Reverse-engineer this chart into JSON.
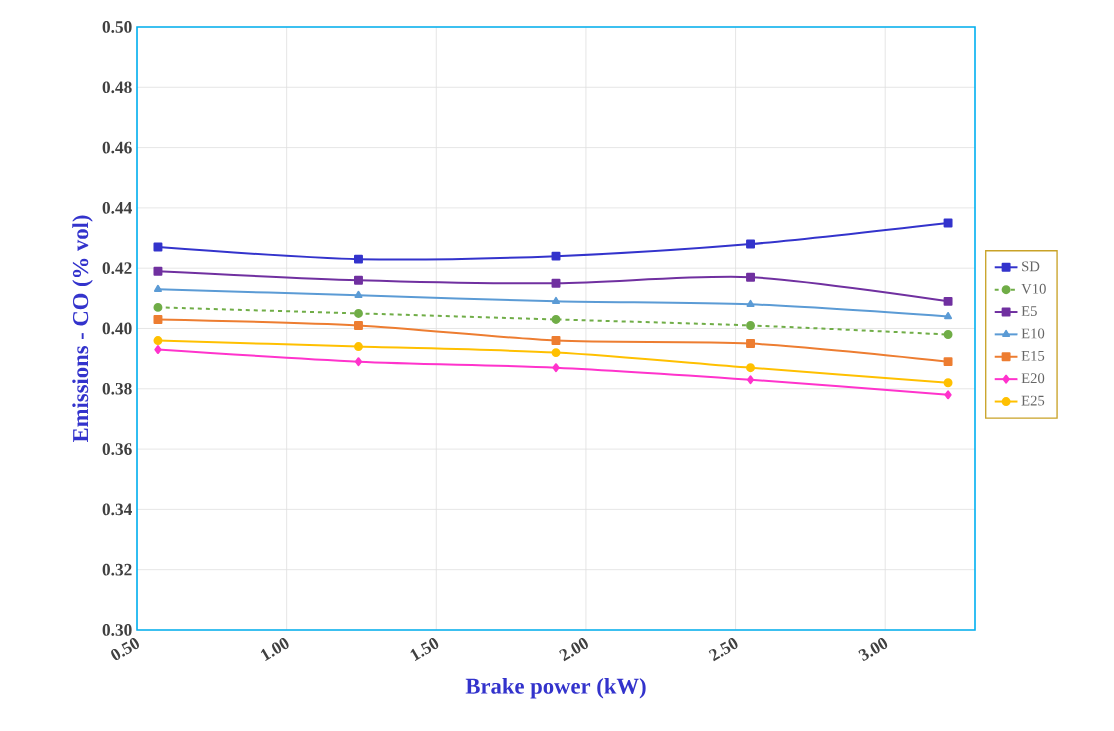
{
  "chart_data": {
    "type": "line",
    "xlabel": "Brake power (kW)",
    "ylabel": "Emissions - CO (% vol)",
    "x": [
      0.57,
      1.24,
      1.9,
      2.55,
      3.21
    ],
    "series": [
      {
        "name": "SD",
        "color": "#3333cc",
        "marker": "square",
        "values": [
          0.427,
          0.423,
          0.424,
          0.428,
          0.435
        ]
      },
      {
        "name": "V10",
        "color": "#70ad47",
        "marker": "circle",
        "line_style": "dashed",
        "values": [
          0.407,
          0.405,
          0.403,
          0.401,
          0.398
        ]
      },
      {
        "name": "E5",
        "color": "#7030a0",
        "marker": "square",
        "values": [
          0.419,
          0.416,
          0.415,
          0.417,
          0.409
        ]
      },
      {
        "name": "E10",
        "color": "#5b9bd5",
        "marker": "triangle",
        "values": [
          0.413,
          0.411,
          0.409,
          0.408,
          0.404
        ]
      },
      {
        "name": "E15",
        "color": "#ed7d31",
        "marker": "square",
        "values": [
          0.403,
          0.401,
          0.396,
          0.395,
          0.389
        ]
      },
      {
        "name": "E20",
        "color": "#ff33cc",
        "marker": "diamond",
        "values": [
          0.393,
          0.389,
          0.387,
          0.383,
          0.378
        ]
      },
      {
        "name": "E25",
        "color": "#ffc000",
        "marker": "circle",
        "values": [
          0.396,
          0.394,
          0.392,
          0.387,
          0.382
        ]
      }
    ],
    "xlim": [
      0.5,
      3.3
    ],
    "xticks": [
      {
        "value": 0.5,
        "label": "0.50"
      },
      {
        "value": 1.0,
        "label": "1.00"
      },
      {
        "value": 1.5,
        "label": "1.50"
      },
      {
        "value": 2.0,
        "label": "2.00"
      },
      {
        "value": 2.5,
        "label": "2.50"
      },
      {
        "value": 3.0,
        "label": "3.00"
      }
    ],
    "ylim": [
      0.3,
      0.5
    ],
    "yticks": [
      {
        "value": 0.3,
        "label": "0.30"
      },
      {
        "value": 0.32,
        "label": "0.32"
      },
      {
        "value": 0.34,
        "label": "0.34"
      },
      {
        "value": 0.36,
        "label": "0.36"
      },
      {
        "value": 0.38,
        "label": "0.38"
      },
      {
        "value": 0.4,
        "label": "0.40"
      },
      {
        "value": 0.42,
        "label": "0.42"
      },
      {
        "value": 0.44,
        "label": "0.44"
      },
      {
        "value": 0.46,
        "label": "0.46"
      },
      {
        "value": 0.48,
        "label": "0.48"
      },
      {
        "value": 0.5,
        "label": "0.50"
      }
    ],
    "grid": true,
    "legend": "right"
  }
}
